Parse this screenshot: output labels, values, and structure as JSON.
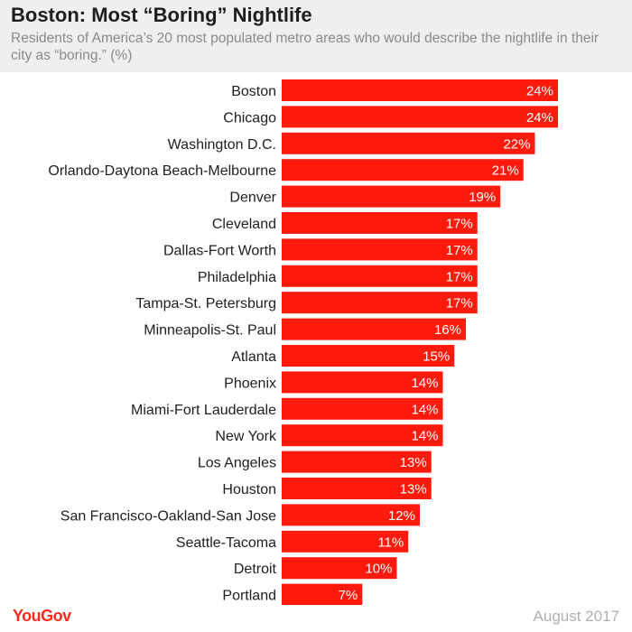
{
  "header": {
    "title": "Boston: Most “Boring” Nightlife",
    "subtitle": "Residents of America’s 20 most populated metro areas who would describe the nightlife in their city as “boring.” (%)"
  },
  "footer": {
    "brand": "YouGov",
    "date": "August 2017"
  },
  "colors": {
    "bar": "#ff1a0e",
    "label": "#1e1e1e",
    "value_label": "#ffffff"
  },
  "chart_data": {
    "type": "bar",
    "orientation": "horizontal",
    "categories": [
      "Boston",
      "Chicago",
      "Washington D.C.",
      "Orlando-Daytona Beach-Melbourne",
      "Denver",
      "Cleveland",
      "Dallas-Fort Worth",
      "Philadelphia",
      "Tampa-St. Petersburg",
      "Minneapolis-St. Paul",
      "Atlanta",
      "Phoenix",
      "Miami-Fort Lauderdale",
      "New York",
      "Los Angeles",
      "Houston",
      "San Francisco-Oakland-San Jose",
      "Seattle-Tacoma",
      "Detroit",
      "Portland"
    ],
    "values": [
      24,
      24,
      22,
      21,
      19,
      17,
      17,
      17,
      17,
      16,
      15,
      14,
      14,
      14,
      13,
      13,
      12,
      11,
      10,
      7
    ],
    "value_labels": [
      "24%",
      "24%",
      "22%",
      "21%",
      "19%",
      "17%",
      "17%",
      "17%",
      "17%",
      "16%",
      "15%",
      "14%",
      "14%",
      "14%",
      "13%",
      "13%",
      "12%",
      "11%",
      "10%",
      "7%"
    ],
    "title": "Boston: Most “Boring” Nightlife",
    "xlabel": "",
    "ylabel": "",
    "xlim": [
      0,
      24
    ],
    "grid": false,
    "legend": "none"
  }
}
